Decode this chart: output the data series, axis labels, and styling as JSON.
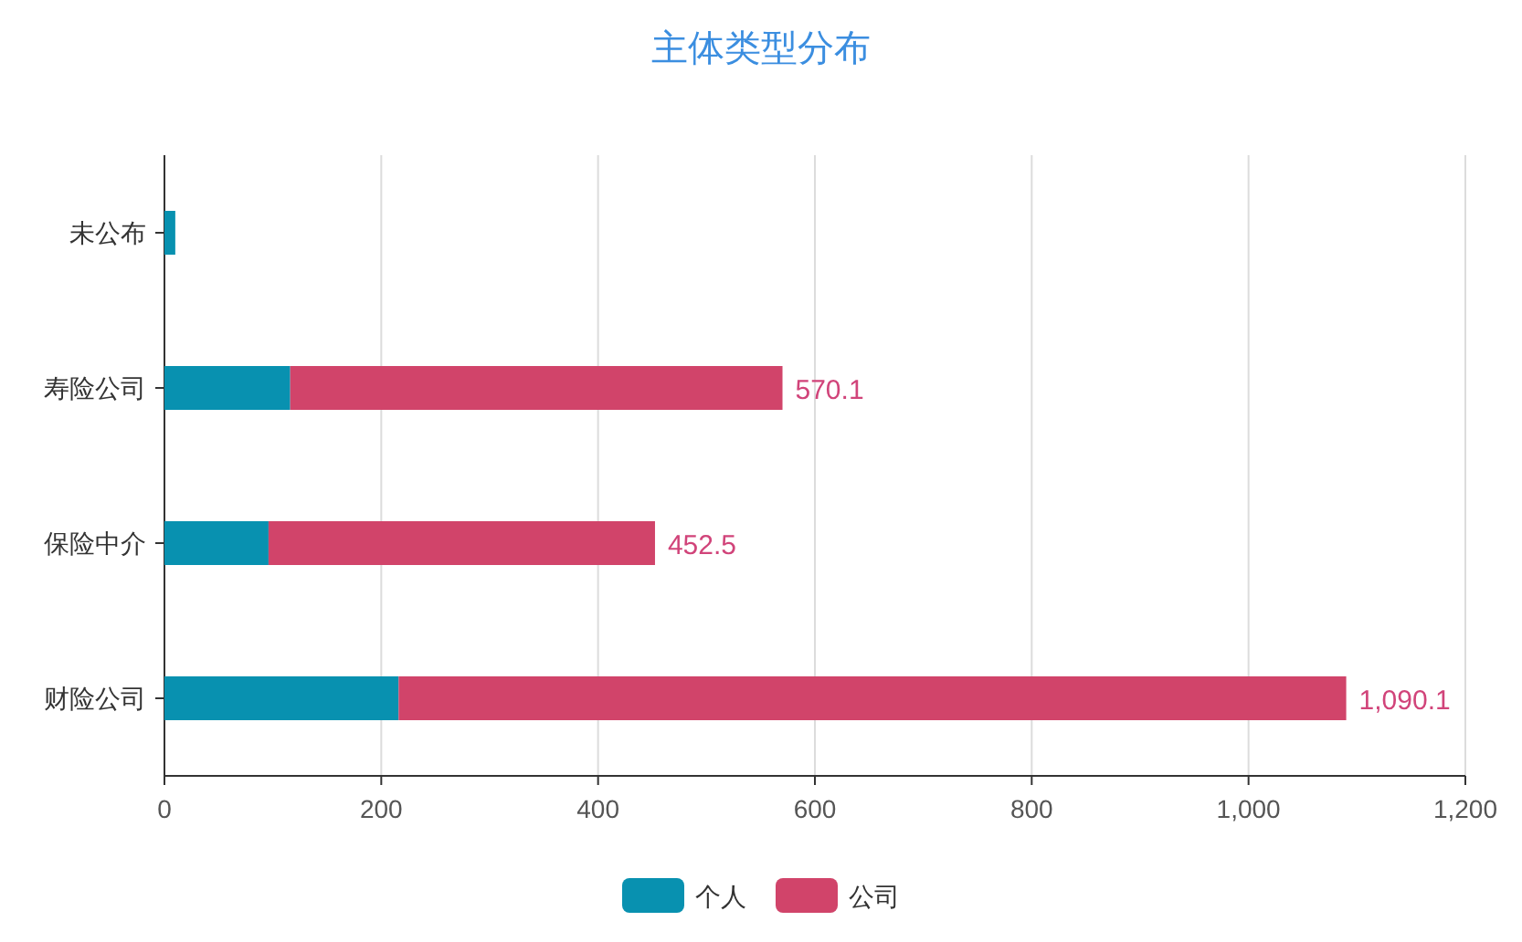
{
  "chart_data": {
    "type": "bar",
    "title": "主体类型分布",
    "orientation": "horizontal",
    "stacked": true,
    "categories": [
      "未公布",
      "寿险公司",
      "保险中介",
      "财险公司"
    ],
    "series": [
      {
        "name": "个人",
        "color": "#0891b0",
        "values": [
          10,
          116,
          96,
          216
        ]
      },
      {
        "name": "公司",
        "color": "#d1446a",
        "values": [
          null,
          454.1,
          356.5,
          874.1
        ]
      }
    ],
    "totals": [
      null,
      "570.1",
      "452.5",
      "1,090.1"
    ],
    "xlim": [
      0,
      1200
    ],
    "xticks": [
      0,
      200,
      400,
      600,
      800,
      {
        "value": 1000,
        "label": "1,000"
      },
      {
        "value": 1200,
        "label": "1,200"
      }
    ],
    "grid": "x",
    "legend": "bottom"
  }
}
